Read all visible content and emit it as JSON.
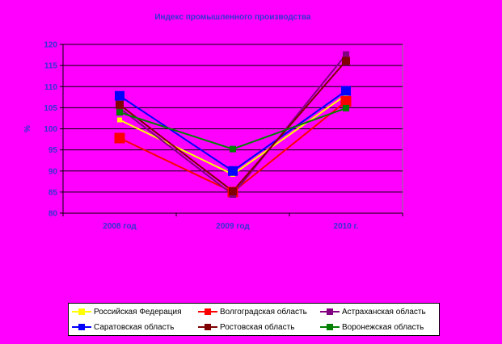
{
  "chart_data": {
    "type": "line",
    "title": "Индекс промышленного производства",
    "ylabel": "%",
    "xlabel": "",
    "categories": [
      "2008 год",
      "2009 год",
      "2010 г."
    ],
    "ylim": [
      80,
      120
    ],
    "yticks": [
      120,
      115,
      110,
      105,
      100,
      95,
      90,
      85,
      80
    ],
    "grid": true,
    "legend_position": "bottom",
    "background_color": "#ff00ff",
    "plot_background_color": "#ff00ff",
    "series": [
      {
        "name": "Российская Федерация",
        "color": "#ffff00",
        "values": [
          102.1,
          89.2,
          108.0
        ]
      },
      {
        "name": "Волгоградская область",
        "color": "#ff0000",
        "values": [
          97.8,
          85.0,
          106.5
        ]
      },
      {
        "name": "Астраханская область",
        "color": "#800080",
        "values": [
          104.9,
          84.4,
          117.6
        ]
      },
      {
        "name": "Саратовская область",
        "color": "#0000ff",
        "values": [
          107.8,
          90.0,
          109.0
        ]
      },
      {
        "name": "Ростовская область",
        "color": "#800000",
        "values": [
          105.7,
          85.2,
          116.1
        ]
      },
      {
        "name": "Воронежская область",
        "color": "#008000",
        "values": [
          103.9,
          95.2,
          104.9
        ]
      }
    ]
  }
}
